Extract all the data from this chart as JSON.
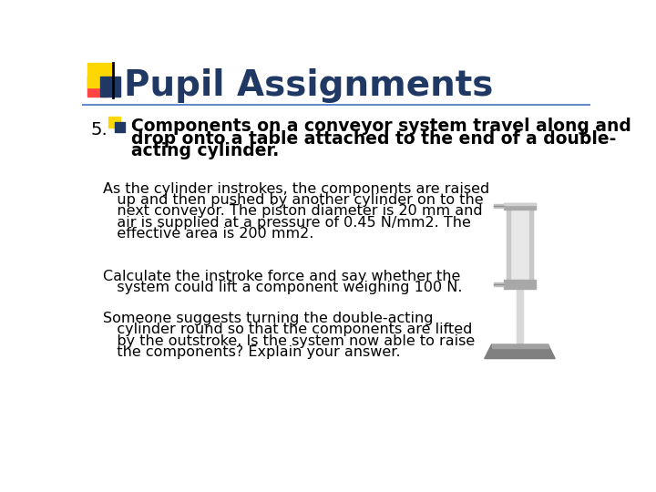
{
  "title": "Pupil Assignments",
  "title_color": "#1F3864",
  "title_fontsize": 28,
  "background_color": "#ffffff",
  "header_line_color": "#4472C4",
  "logo_yellow": "#FFD700",
  "logo_red": "#FF4444",
  "logo_blue": "#1F3864",
  "number": "5.",
  "number_fontsize": 14,
  "para1_line1": "Components on a conveyor system travel along and",
  "para1_line2": "drop onto a table attached to the end of a double-",
  "para1_line3": "acting cylinder.",
  "para2_line1": "As the cylinder instrokes, the components are raised",
  "para2_line2": "   up and then pushed by another cylinder on to the",
  "para2_line3": "   next conveyor. The piston diameter is 20 mm and",
  "para2_line4": "   air is supplied at a pressure of 0.45 N/mm2. The",
  "para2_line5": "   effective area is 200 mm2.",
  "para3_line1": "Calculate the instroke force and say whether the",
  "para3_line2": "   system could lift a component weighing 100 N.",
  "para4_line1": "Someone suggests turning the double-acting",
  "para4_line2": "   cylinder round so that the components are lifted",
  "para4_line3": "   by the outstroke. Is the system now able to raise",
  "para4_line4": "   the components? Explain your answer.",
  "text_fontsize": 11.5,
  "text_color": "#000000",
  "font_family": "DejaVu Sans"
}
